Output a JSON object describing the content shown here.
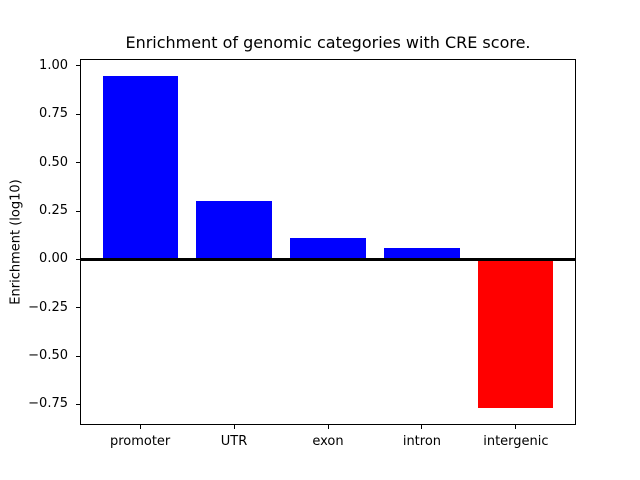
{
  "chart_data": {
    "type": "bar",
    "title": "Enrichment of genomic categories with CRE score.",
    "xlabel": "",
    "ylabel": "Enrichment (log10)",
    "categories": [
      "promoter",
      "UTR",
      "exon",
      "intron",
      "intergenic"
    ],
    "values": [
      0.95,
      0.3,
      0.11,
      0.06,
      -0.77
    ],
    "bar_colors": [
      "#0000ff",
      "#0000ff",
      "#0000ff",
      "#0000ff",
      "#ff0000"
    ],
    "positive_color": "#0000ff",
    "negative_color": "#ff0000",
    "bar_width": 0.8,
    "xlim": [
      -0.64,
      4.64
    ],
    "ylim": [
      -0.856,
      1.036
    ],
    "yticks": [
      1.0,
      0.75,
      0.5,
      0.25,
      0.0,
      -0.25,
      -0.5,
      -0.75
    ],
    "ytick_labels": [
      "1.00",
      "0.75",
      "0.50",
      "0.25",
      "0.00",
      "−0.25",
      "−0.50",
      "−0.75"
    ],
    "zero_line": true,
    "grid": false,
    "legend": false,
    "frame_color": "#000000",
    "background_color": "#ffffff"
  }
}
